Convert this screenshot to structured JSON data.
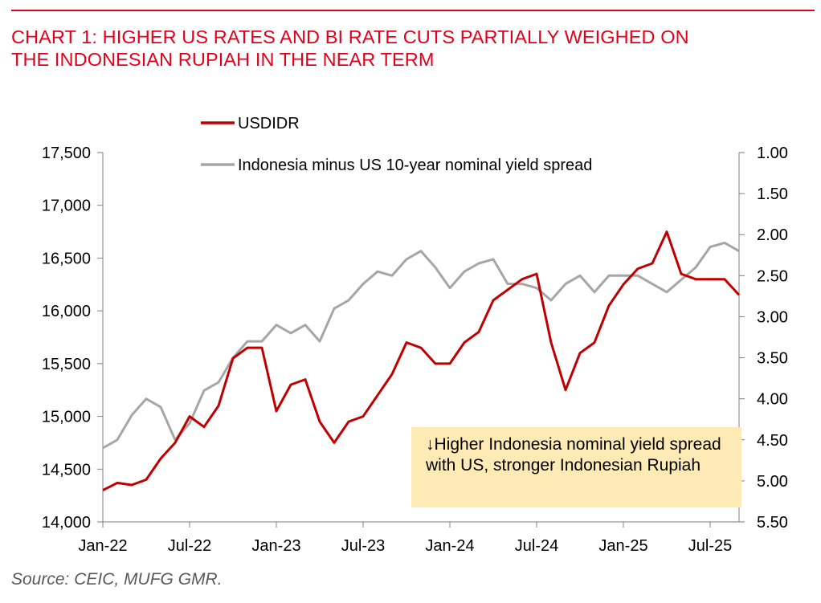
{
  "title_lines": [
    "CHART 1: HIGHER US RATES AND BI RATE CUTS PARTIALLY WEIGHED ON",
    "THE INDONESIAN RUPIAH IN THE NEAR TERM"
  ],
  "source": "Source: CEIC, MUFG GMR.",
  "annotation": "↓Higher Indonesia nominal yield spread with US, stronger Indonesian Rupiah",
  "colors": {
    "title": "#e4001b",
    "usdidr": "#c00000",
    "spread": "#a6a6a6",
    "note_bg": "#fdeab4"
  },
  "chart_data": {
    "type": "line",
    "legend": {
      "placement": "top-left"
    },
    "grid": false,
    "x_ticks": [
      "Jan-22",
      "Jul-22",
      "Jan-23",
      "Jul-23",
      "Jan-24",
      "Jul-24",
      "Jan-25",
      "Jul-25"
    ],
    "x_range": [
      "2022-01",
      "2025-09"
    ],
    "y_left": {
      "range": [
        14000,
        17500
      ],
      "ticks": [
        "14,000",
        "14,500",
        "15,000",
        "15,500",
        "16,000",
        "16,500",
        "17,000",
        "17,500"
      ]
    },
    "y_right": {
      "range": [
        1.0,
        5.5
      ],
      "inverted": true,
      "ticks": [
        "1.00",
        "1.50",
        "2.00",
        "2.50",
        "3.00",
        "3.50",
        "4.00",
        "4.50",
        "5.00",
        "5.50"
      ]
    },
    "series": [
      {
        "name": "USDIDR",
        "axis": "left",
        "x": [
          "2022-01",
          "2022-02",
          "2022-03",
          "2022-04",
          "2022-05",
          "2022-06",
          "2022-07",
          "2022-08",
          "2022-09",
          "2022-10",
          "2022-11",
          "2022-12",
          "2023-01",
          "2023-02",
          "2023-03",
          "2023-04",
          "2023-05",
          "2023-06",
          "2023-07",
          "2023-08",
          "2023-09",
          "2023-10",
          "2023-11",
          "2023-12",
          "2024-01",
          "2024-02",
          "2024-03",
          "2024-04",
          "2024-05",
          "2024-06",
          "2024-07",
          "2024-08",
          "2024-09",
          "2024-10",
          "2024-11",
          "2024-12",
          "2025-01",
          "2025-02",
          "2025-03",
          "2025-04",
          "2025-05",
          "2025-06",
          "2025-07",
          "2025-08",
          "2025-09"
        ],
        "values": [
          14300,
          14370,
          14350,
          14400,
          14600,
          14750,
          15000,
          14900,
          15100,
          15550,
          15650,
          15650,
          15050,
          15300,
          15350,
          14950,
          14750,
          14950,
          15000,
          15200,
          15400,
          15700,
          15650,
          15500,
          15500,
          15700,
          15800,
          16100,
          16200,
          16300,
          16350,
          15700,
          15250,
          15600,
          15700,
          16050,
          16250,
          16400,
          16450,
          16750,
          16350,
          16300,
          16300,
          16300,
          16150
        ]
      },
      {
        "name": "Indonesia minus US 10-year nominal yield spread",
        "axis": "right",
        "x": [
          "2022-01",
          "2022-02",
          "2022-03",
          "2022-04",
          "2022-05",
          "2022-06",
          "2022-07",
          "2022-08",
          "2022-09",
          "2022-10",
          "2022-11",
          "2022-12",
          "2023-01",
          "2023-02",
          "2023-03",
          "2023-04",
          "2023-05",
          "2023-06",
          "2023-07",
          "2023-08",
          "2023-09",
          "2023-10",
          "2023-11",
          "2023-12",
          "2024-01",
          "2024-02",
          "2024-03",
          "2024-04",
          "2024-05",
          "2024-06",
          "2024-07",
          "2024-08",
          "2024-09",
          "2024-10",
          "2024-11",
          "2024-12",
          "2025-01",
          "2025-02",
          "2025-03",
          "2025-04",
          "2025-05",
          "2025-06",
          "2025-07",
          "2025-08",
          "2025-09"
        ],
        "values": [
          4.6,
          4.5,
          4.2,
          4.0,
          4.1,
          4.5,
          4.3,
          3.9,
          3.8,
          3.5,
          3.3,
          3.3,
          3.1,
          3.2,
          3.1,
          3.3,
          2.9,
          2.8,
          2.6,
          2.45,
          2.5,
          2.3,
          2.2,
          2.4,
          2.65,
          2.45,
          2.35,
          2.3,
          2.6,
          2.6,
          2.65,
          2.8,
          2.6,
          2.5,
          2.7,
          2.5,
          2.5,
          2.5,
          2.6,
          2.7,
          2.55,
          2.4,
          2.15,
          2.1,
          2.2
        ]
      }
    ]
  }
}
